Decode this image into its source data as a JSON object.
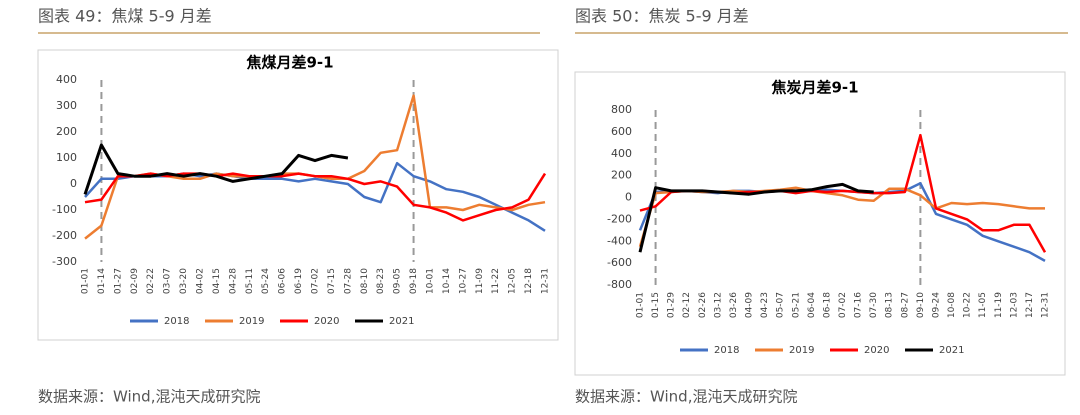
{
  "chart_data": [
    {
      "type": "line",
      "caption": "图表 49：焦煤 5-9 月差",
      "title": "焦煤月差9-1",
      "source": "数据来源：Wind,混沌天成研究院",
      "categories": [
        "01-01",
        "01-14",
        "01-27",
        "02-09",
        "02-22",
        "03-07",
        "03-20",
        "04-02",
        "04-15",
        "04-28",
        "05-11",
        "05-24",
        "06-06",
        "06-19",
        "07-02",
        "07-15",
        "07-28",
        "08-10",
        "08-23",
        "09-05",
        "09-18",
        "10-01",
        "10-14",
        "10-27",
        "11-09",
        "11-22",
        "12-05",
        "12-18",
        "12-31"
      ],
      "ylim": [
        -300,
        400
      ],
      "yticks": [
        -300,
        -200,
        -100,
        0,
        100,
        200,
        300,
        400
      ],
      "vlines": [
        "01-14",
        "09-18"
      ],
      "series": [
        {
          "name": "2018",
          "color": "#4472c4",
          "values": [
            -50,
            20,
            20,
            30,
            30,
            30,
            40,
            30,
            40,
            30,
            20,
            20,
            20,
            10,
            20,
            10,
            0,
            -50,
            -70,
            80,
            30,
            10,
            -20,
            -30,
            -50,
            -80,
            -110,
            -140,
            -180
          ]
        },
        {
          "name": "2019",
          "color": "#ed7d31",
          "values": [
            -210,
            -160,
            30,
            30,
            40,
            30,
            20,
            20,
            40,
            30,
            30,
            30,
            40,
            40,
            30,
            20,
            20,
            50,
            120,
            130,
            340,
            -90,
            -90,
            -100,
            -80,
            -90,
            -100,
            -80,
            -70
          ]
        },
        {
          "name": "2020",
          "color": "#ff0000",
          "values": [
            -70,
            -60,
            30,
            30,
            40,
            30,
            40,
            40,
            30,
            40,
            30,
            30,
            30,
            40,
            30,
            30,
            20,
            0,
            10,
            -10,
            -80,
            -90,
            -110,
            -140,
            -120,
            -100,
            -90,
            -60,
            40
          ]
        },
        {
          "name": "2021",
          "color": "#000000",
          "values": [
            -40,
            150,
            40,
            30,
            30,
            40,
            30,
            40,
            30,
            10,
            20,
            30,
            40,
            110,
            90,
            110,
            100,
            null,
            null,
            null,
            null,
            null,
            null,
            null,
            null,
            null,
            null,
            null,
            null
          ]
        }
      ]
    },
    {
      "type": "line",
      "caption": "图表 50：焦炭 5-9 月差",
      "title": "焦炭月差9-1",
      "source": "数据来源：Wind,混沌天成研究院",
      "categories": [
        "01-01",
        "01-15",
        "01-29",
        "02-12",
        "02-26",
        "03-12",
        "03-26",
        "04-09",
        "04-23",
        "05-07",
        "05-21",
        "06-04",
        "06-18",
        "07-02",
        "07-16",
        "07-30",
        "08-13",
        "08-27",
        "09-10",
        "09-24",
        "10-08",
        "10-22",
        "11-05",
        "11-19",
        "12-03",
        "12-17",
        "12-31"
      ],
      "ylim": [
        -800,
        800
      ],
      "yticks": [
        -800,
        -600,
        -400,
        -200,
        0,
        200,
        400,
        600,
        800
      ],
      "vlines": [
        "01-15",
        "09-10"
      ],
      "series": [
        {
          "name": "2018",
          "color": "#4472c4",
          "values": [
            -300,
            50,
            60,
            60,
            50,
            40,
            60,
            60,
            50,
            60,
            50,
            60,
            70,
            60,
            50,
            40,
            50,
            60,
            130,
            -150,
            -200,
            -250,
            -350,
            -400,
            -450,
            -500,
            -580
          ]
        },
        {
          "name": "2019",
          "color": "#ed7d31",
          "values": [
            -450,
            40,
            50,
            60,
            50,
            50,
            60,
            50,
            60,
            70,
            90,
            60,
            40,
            20,
            -20,
            -30,
            80,
            80,
            20,
            -100,
            -50,
            -60,
            -50,
            -60,
            -80,
            -100,
            -100
          ]
        },
        {
          "name": "2020",
          "color": "#ff0000",
          "values": [
            -120,
            -80,
            50,
            60,
            60,
            50,
            40,
            50,
            50,
            60,
            40,
            60,
            50,
            60,
            50,
            40,
            40,
            50,
            570,
            -100,
            -150,
            -200,
            -300,
            -300,
            -250,
            -250,
            -500
          ]
        },
        {
          "name": "2021",
          "color": "#000000",
          "values": [
            -500,
            90,
            60,
            60,
            60,
            50,
            40,
            30,
            50,
            60,
            60,
            70,
            100,
            120,
            60,
            50,
            null,
            null,
            null,
            null,
            null,
            null,
            null,
            null,
            null,
            null,
            null
          ]
        }
      ]
    }
  ]
}
